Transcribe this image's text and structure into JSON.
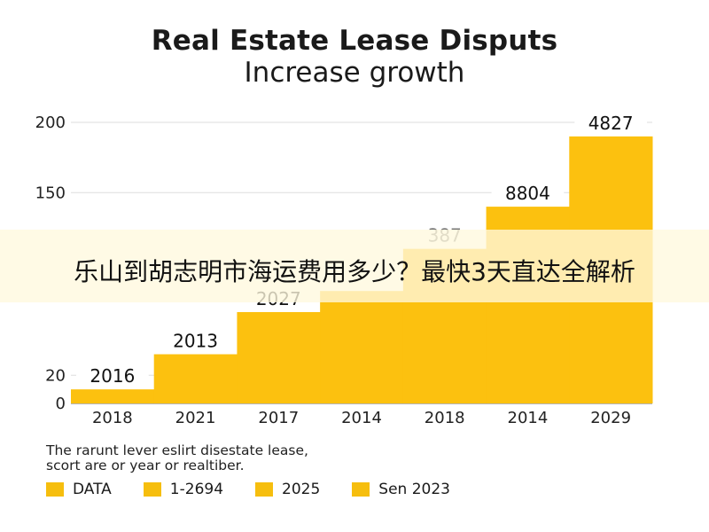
{
  "chart_data": {
    "type": "bar",
    "title": "Real Estate Lease Disputs",
    "subtitle": "Increase growth",
    "categories": [
      "2018",
      "2021",
      "2017",
      "2014",
      "2018",
      "2014",
      "2029"
    ],
    "y_ticks": [
      "200",
      "150",
      "20",
      "0"
    ],
    "y_tick_positions": [
      200,
      150,
      20,
      0
    ],
    "values": [
      10,
      35,
      65,
      80,
      110,
      140,
      190
    ],
    "data_labels": [
      "2016",
      "2013",
      "2027",
      "",
      "387",
      "8804",
      "4827"
    ],
    "ylim": [
      0,
      200
    ],
    "grid": true,
    "legend_position": "bottom-left",
    "bar_color": "#fcc10f",
    "label_box_color": "#ffffff",
    "note": [
      "The rarunt lever eslirt disestate lease,",
      "scort are or year or realtiber."
    ],
    "legend": [
      {
        "label": "DATA",
        "color": "#f6be0e"
      },
      {
        "label": "1-2694",
        "color": "#f6be0e"
      },
      {
        "label": "2025",
        "color": "#f6be0e"
      },
      {
        "label": "Sen 2023",
        "color": "#f6be0e"
      }
    ]
  },
  "overlay": {
    "text": "乐山到胡志明市海运费用多少？最快3天直达全解析"
  }
}
